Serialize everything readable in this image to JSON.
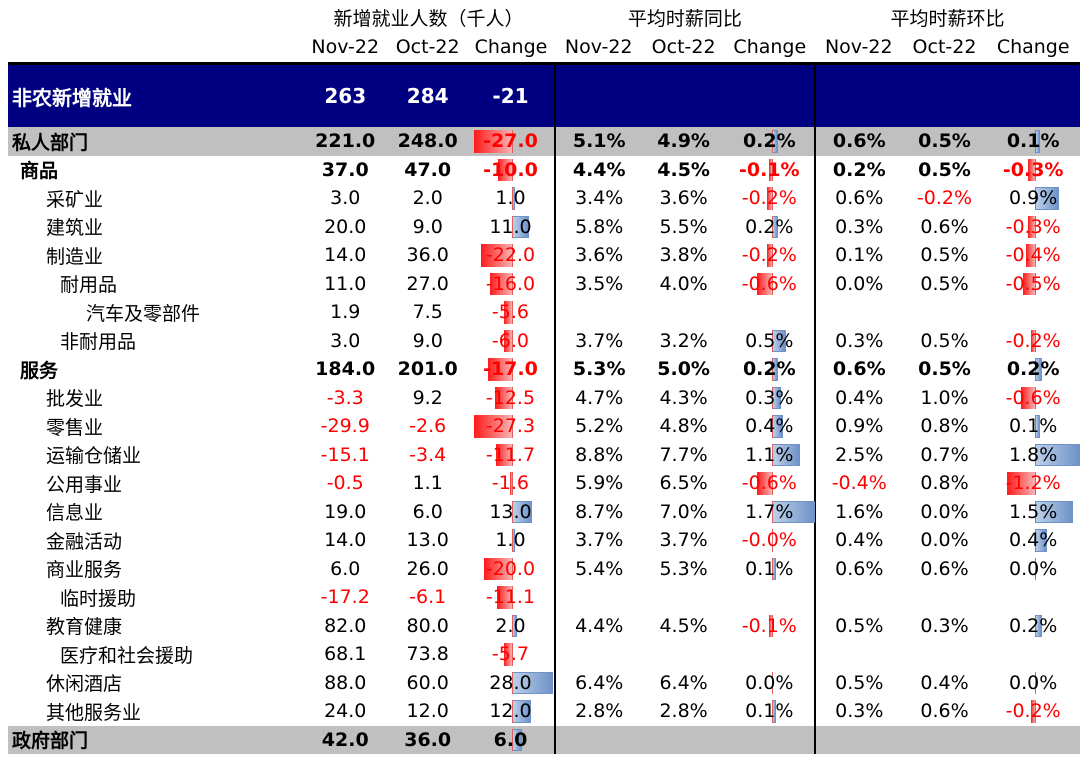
{
  "headers": {
    "group1": "新增就业人数（千人）",
    "group2": "平均时薪同比",
    "group3": "平均时薪环比",
    "sub": [
      "Nov-22",
      "Oct-22",
      "Change",
      "Nov-22",
      "Oct-22",
      "Change",
      "Nov-22",
      "Oct-22",
      "Change"
    ]
  },
  "rows": [
    {
      "label": "非农新增就业",
      "style": "nfp",
      "indent": 0,
      "v": [
        "263",
        "284",
        "-21",
        "",
        "",
        "",
        "",
        "",
        ""
      ],
      "chg": [
        null,
        null,
        null
      ]
    },
    {
      "label": "私人部门",
      "style": "gray",
      "indent": 0,
      "v": [
        "221.0",
        "248.0",
        "-27.0",
        "5.1%",
        "4.9%",
        "0.2%",
        "0.6%",
        "0.5%",
        "0.1%"
      ],
      "chg": [
        -27.0,
        0.2,
        0.1
      ]
    },
    {
      "label": "商品",
      "style": "bold",
      "indent": 1,
      "v": [
        "37.0",
        "47.0",
        "-10.0",
        "4.4%",
        "4.5%",
        "-0.1%",
        "0.2%",
        "0.5%",
        "-0.3%"
      ],
      "chg": [
        -10.0,
        -0.1,
        -0.3
      ]
    },
    {
      "label": "采矿业",
      "style": "",
      "indent": 2,
      "v": [
        "3.0",
        "2.0",
        "1.0",
        "3.4%",
        "3.6%",
        "-0.2%",
        "0.6%",
        "-0.2%",
        "0.9%"
      ],
      "chg": [
        1.0,
        -0.2,
        0.9
      ]
    },
    {
      "label": "建筑业",
      "style": "",
      "indent": 2,
      "v": [
        "20.0",
        "9.0",
        "11.0",
        "5.8%",
        "5.5%",
        "0.2%",
        "0.3%",
        "0.6%",
        "-0.3%"
      ],
      "chg": [
        11.0,
        0.2,
        -0.3
      ]
    },
    {
      "label": "制造业",
      "style": "",
      "indent": 2,
      "v": [
        "14.0",
        "36.0",
        "-22.0",
        "3.6%",
        "3.8%",
        "-0.2%",
        "0.1%",
        "0.5%",
        "-0.4%"
      ],
      "chg": [
        -22.0,
        -0.2,
        -0.4
      ]
    },
    {
      "label": "耐用品",
      "style": "",
      "indent": 3,
      "v": [
        "11.0",
        "27.0",
        "-16.0",
        "3.5%",
        "4.0%",
        "-0.6%",
        "0.0%",
        "0.5%",
        "-0.5%"
      ],
      "chg": [
        -16.0,
        -0.6,
        -0.5
      ]
    },
    {
      "label": "汽车及零部件",
      "style": "",
      "indent": 4,
      "v": [
        "1.9",
        "7.5",
        "-5.6",
        "",
        "",
        "",
        "",
        "",
        ""
      ],
      "chg": [
        -5.6,
        null,
        null
      ]
    },
    {
      "label": "非耐用品",
      "style": "",
      "indent": 3,
      "v": [
        "3.0",
        "9.0",
        "-6.0",
        "3.7%",
        "3.2%",
        "0.5%",
        "0.3%",
        "0.5%",
        "-0.2%"
      ],
      "chg": [
        -6.0,
        0.5,
        -0.2
      ]
    },
    {
      "label": "服务",
      "style": "bold",
      "indent": 1,
      "v": [
        "184.0",
        "201.0",
        "-17.0",
        "5.3%",
        "5.0%",
        "0.2%",
        "0.6%",
        "0.5%",
        "0.2%"
      ],
      "chg": [
        -17.0,
        0.2,
        0.2
      ]
    },
    {
      "label": "批发业",
      "style": "",
      "indent": 2,
      "v": [
        "-3.3",
        "9.2",
        "-12.5",
        "4.7%",
        "4.3%",
        "0.3%",
        "0.4%",
        "1.0%",
        "-0.6%"
      ],
      "chg": [
        -12.5,
        0.3,
        -0.6
      ]
    },
    {
      "label": "零售业",
      "style": "",
      "indent": 2,
      "v": [
        "-29.9",
        "-2.6",
        "-27.3",
        "5.2%",
        "4.8%",
        "0.4%",
        "0.9%",
        "0.8%",
        "0.1%"
      ],
      "chg": [
        -27.3,
        0.4,
        0.1
      ]
    },
    {
      "label": "运输仓储业",
      "style": "",
      "indent": 2,
      "v": [
        "-15.1",
        "-3.4",
        "-11.7",
        "8.8%",
        "7.7%",
        "1.1%",
        "2.5%",
        "0.7%",
        "1.8%"
      ],
      "chg": [
        -11.7,
        1.1,
        1.8
      ]
    },
    {
      "label": "公用事业",
      "style": "",
      "indent": 2,
      "v": [
        "-0.5",
        "1.1",
        "-1.6",
        "5.9%",
        "6.5%",
        "-0.6%",
        "-0.4%",
        "0.8%",
        "-1.2%"
      ],
      "chg": [
        -1.6,
        -0.6,
        -1.2
      ]
    },
    {
      "label": "信息业",
      "style": "",
      "indent": 2,
      "v": [
        "19.0",
        "6.0",
        "13.0",
        "8.7%",
        "7.0%",
        "1.7%",
        "1.6%",
        "0.0%",
        "1.5%"
      ],
      "chg": [
        13.0,
        1.7,
        1.5
      ]
    },
    {
      "label": "金融活动",
      "style": "",
      "indent": 2,
      "v": [
        "14.0",
        "13.0",
        "1.0",
        "3.7%",
        "3.7%",
        "-0.0%",
        "0.4%",
        "0.0%",
        "0.4%"
      ],
      "chg": [
        1.0,
        -0.0,
        0.4
      ]
    },
    {
      "label": "商业服务",
      "style": "",
      "indent": 2,
      "v": [
        "6.0",
        "26.0",
        "-20.0",
        "5.4%",
        "5.3%",
        "0.1%",
        "0.6%",
        "0.6%",
        "0.0%"
      ],
      "chg": [
        -20.0,
        0.1,
        0.0
      ]
    },
    {
      "label": "临时援助",
      "style": "",
      "indent": 3,
      "v": [
        "-17.2",
        "-6.1",
        "-11.1",
        "",
        "",
        "",
        "",
        "",
        ""
      ],
      "chg": [
        -11.1,
        null,
        null
      ]
    },
    {
      "label": "教育健康",
      "style": "",
      "indent": 2,
      "v": [
        "82.0",
        "80.0",
        "2.0",
        "4.4%",
        "4.5%",
        "-0.1%",
        "0.5%",
        "0.3%",
        "0.2%"
      ],
      "chg": [
        2.0,
        -0.1,
        0.2
      ]
    },
    {
      "label": "医疗和社会援助",
      "style": "",
      "indent": 3,
      "v": [
        "68.1",
        "73.8",
        "-5.7",
        "",
        "",
        "",
        "",
        "",
        ""
      ],
      "chg": [
        -5.7,
        null,
        null
      ]
    },
    {
      "label": "休闲酒店",
      "style": "",
      "indent": 2,
      "v": [
        "88.0",
        "60.0",
        "28.0",
        "6.4%",
        "6.4%",
        "0.0%",
        "0.5%",
        "0.4%",
        "0.0%"
      ],
      "chg": [
        28.0,
        0.0,
        0.0
      ]
    },
    {
      "label": "其他服务业",
      "style": "",
      "indent": 2,
      "v": [
        "24.0",
        "12.0",
        "12.0",
        "2.8%",
        "2.8%",
        "0.1%",
        "0.3%",
        "0.6%",
        "-0.2%"
      ],
      "chg": [
        12.0,
        0.1,
        -0.2
      ]
    },
    {
      "label": "政府部门",
      "style": "gray",
      "indent": 0,
      "v": [
        "42.0",
        "36.0",
        "6.0",
        "",
        "",
        "",
        "",
        "",
        ""
      ],
      "chg": [
        6.0,
        null,
        null
      ]
    }
  ],
  "colors": {
    "positive_bar": "#6f93c8",
    "negative_bar": "#ff1a1a",
    "header_bg": "#000080",
    "gray_bg": "#c0c0c0"
  }
}
